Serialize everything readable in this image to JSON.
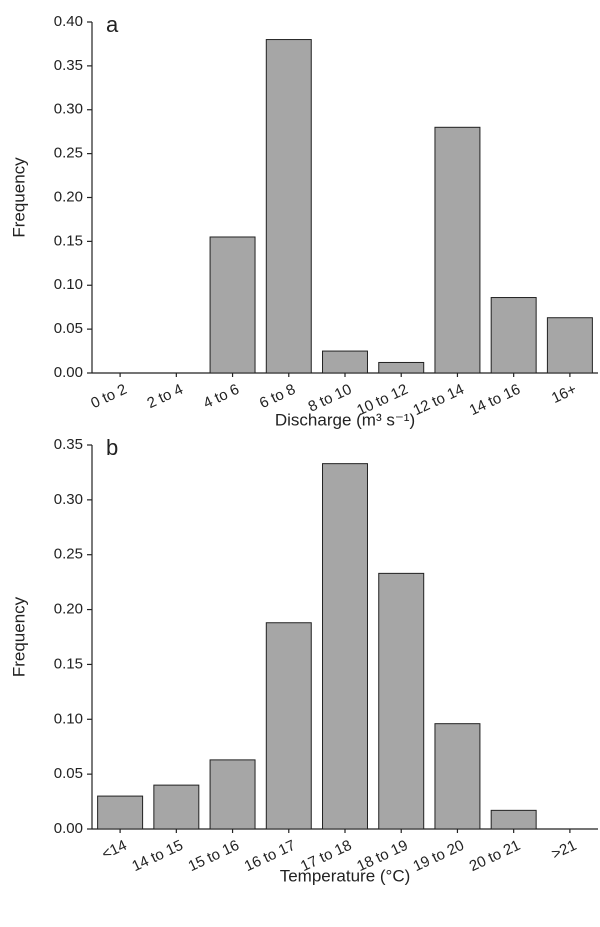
{
  "chart_data": [
    {
      "type": "bar",
      "title": "a",
      "x_label": "Discharge (m³ s⁻¹)",
      "y_label": "Frequency",
      "categories": [
        "0 to 2",
        "2 to 4",
        "4 to 6",
        "6 to 8",
        "8 to 10",
        "10 to 12",
        "12 to 14",
        "14 to 16",
        "16+"
      ],
      "values": [
        0,
        0,
        0.155,
        0.38,
        0.025,
        0.012,
        0.28,
        0.086,
        0.063
      ],
      "color": "#a6a6a6",
      "ylim": [
        0,
        0.4
      ],
      "yticks": [
        {
          "value": 0,
          "label": "0.00"
        },
        0.05,
        {
          "value": 0.1,
          "label": "0.10"
        },
        0.15,
        {
          "value": 0.2,
          "label": "0.20"
        },
        0.25,
        {
          "value": 0.3,
          "label": "0.30"
        },
        0.35,
        {
          "value": 0.4,
          "label": "0.40"
        }
      ]
    },
    {
      "type": "bar",
      "title": "b",
      "x_label": "Temperature (°C)",
      "y_label": "Frequency",
      "categories": [
        "<14",
        "14 to 15",
        "15 to 16",
        "16 to 17",
        "17 to 18",
        "18 to 19",
        "19 to 20",
        "20 to 21",
        ">21"
      ],
      "values": [
        0.03,
        0.04,
        0.063,
        0.188,
        0.333,
        0.233,
        0.096,
        0.017,
        0
      ],
      "color": "#a6a6a6",
      "ylim": [
        0,
        0.35
      ],
      "yticks": [
        {
          "value": 0,
          "label": "0.00"
        },
        0.05,
        {
          "value": 0.1,
          "label": "0.10"
        },
        0.15,
        {
          "value": 0.2,
          "label": "0.20"
        },
        0.25,
        {
          "value": 0.3,
          "label": "0.30"
        },
        0.35
      ]
    }
  ]
}
